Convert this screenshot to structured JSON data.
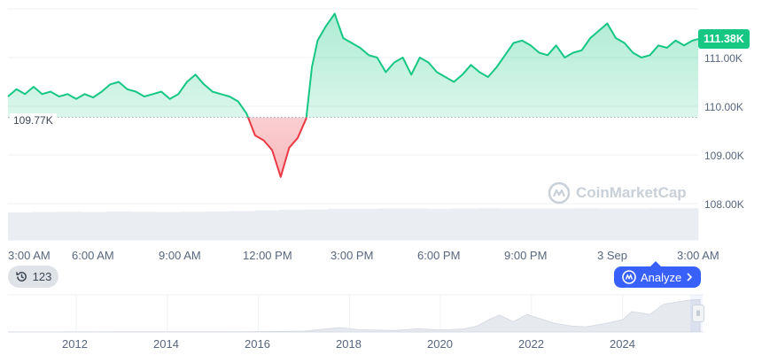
{
  "chart_data": {
    "type": "area",
    "y_axis_labels": [
      "111.00K",
      "110.00K",
      "109.00K",
      "108.00K"
    ],
    "y_axis_values": [
      111000,
      110000,
      109000,
      108000
    ],
    "ylim": [
      107750,
      112000
    ],
    "x_axis_labels": [
      "3:00 AM",
      "6:00 AM",
      "9:00 AM",
      "12:00 PM",
      "3:00 PM",
      "6:00 PM",
      "9:00 PM",
      "3 Sep",
      "3:00 AM"
    ],
    "x_axis_hours": [
      0,
      3,
      6,
      9,
      12,
      15,
      18,
      21,
      24
    ],
    "xlim_hours": [
      0,
      24.3
    ],
    "baseline": 109770,
    "baseline_label": "109.77K",
    "current_price": 111380,
    "current_label": "111.38K",
    "series": [
      {
        "x": [
          0,
          0.3,
          0.6,
          0.9,
          1.2,
          1.5,
          1.8,
          2.1,
          2.4,
          2.7,
          3.0,
          3.3,
          3.6,
          3.9,
          4.2,
          4.5,
          4.8,
          5.1,
          5.4,
          5.7,
          6.0,
          6.3,
          6.6,
          6.9,
          7.2,
          7.5,
          7.8,
          8.1,
          8.4,
          8.7,
          9.0,
          9.3,
          9.6,
          9.9,
          10.2,
          10.5,
          10.7,
          10.9,
          11.2,
          11.5,
          11.8,
          12.1,
          12.4,
          12.7,
          13.0,
          13.3,
          13.6,
          13.9,
          14.2,
          14.5,
          14.8,
          15.1,
          15.4,
          15.7,
          16.0,
          16.3,
          16.6,
          16.9,
          17.2,
          17.5,
          17.8,
          18.1,
          18.4,
          18.7,
          19.0,
          19.3,
          19.6,
          19.9,
          20.2,
          20.5,
          20.8,
          21.1,
          21.4,
          21.7,
          22.0,
          22.3,
          22.6,
          22.9,
          23.2,
          23.5,
          23.8,
          24.1,
          24.3
        ],
        "y": [
          110200,
          110350,
          110250,
          110400,
          110250,
          110300,
          110200,
          110250,
          110150,
          110250,
          110180,
          110300,
          110450,
          110500,
          110350,
          110300,
          110200,
          110250,
          110300,
          110150,
          110250,
          110500,
          110650,
          110450,
          110300,
          110250,
          110200,
          110100,
          109850,
          109400,
          109300,
          109100,
          108550,
          109150,
          109350,
          109750,
          110800,
          111350,
          111650,
          111900,
          111400,
          111300,
          111200,
          111050,
          111000,
          110700,
          110900,
          111000,
          110650,
          111000,
          110900,
          110700,
          110600,
          110500,
          110650,
          110850,
          110700,
          110600,
          110800,
          111050,
          111300,
          111350,
          111250,
          111100,
          111050,
          111250,
          111000,
          111100,
          111150,
          111400,
          111550,
          111700,
          111400,
          111300,
          111100,
          111000,
          111050,
          111250,
          111200,
          111350,
          111250,
          111350,
          111380
        ]
      }
    ],
    "volume_relative": [
      0.84,
      0.85,
      0.86,
      0.85,
      0.87,
      0.86,
      0.85,
      0.86,
      0.87,
      0.88,
      0.9,
      0.92,
      0.93,
      0.95,
      0.95,
      0.96,
      0.96,
      0.95,
      0.96,
      0.97,
      0.96,
      0.96,
      0.96,
      0.97,
      0.96,
      0.96,
      0.97,
      0.97
    ],
    "grid": true,
    "watermark": "CoinMarketCap"
  },
  "controls": {
    "history_count": "123",
    "analyze_label": "Analyze"
  },
  "navigator": {
    "year_labels": [
      "2012",
      "2014",
      "2016",
      "2018",
      "2020",
      "2022",
      "2024"
    ],
    "years": [
      2012,
      2014,
      2016,
      2018,
      2020,
      2022,
      2024
    ],
    "year_range": [
      2010.5,
      2025.7
    ],
    "history_x": [
      2010.5,
      2013,
      2016,
      2017.0,
      2017.8,
      2018.2,
      2019,
      2019.5,
      2020.0,
      2020.5,
      2020.8,
      2021.1,
      2021.3,
      2021.6,
      2021.9,
      2022.2,
      2022.5,
      2022.9,
      2023.2,
      2023.6,
      2024.0,
      2024.2,
      2024.6,
      2024.9,
      2025.1,
      2025.4,
      2025.7
    ],
    "history_y": [
      0,
      0.5,
      1,
      3,
      15,
      8,
      5,
      11,
      7,
      10,
      20,
      45,
      58,
      35,
      60,
      45,
      30,
      20,
      18,
      28,
      42,
      70,
      60,
      95,
      100,
      108,
      111
    ]
  }
}
